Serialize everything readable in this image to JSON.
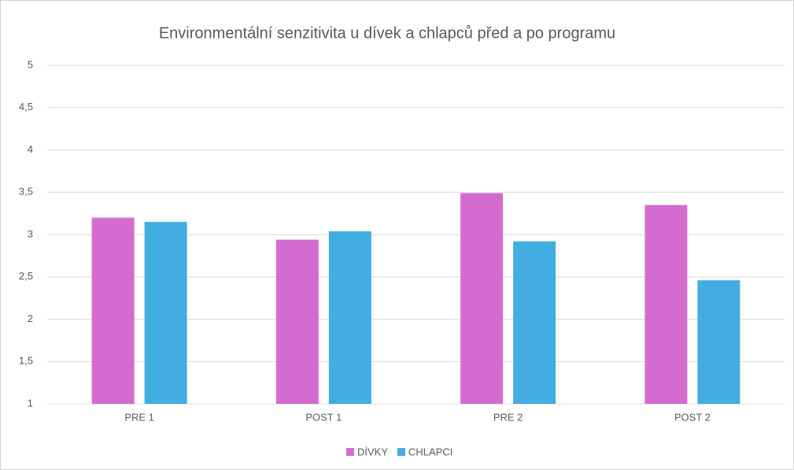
{
  "chart_data": {
    "type": "bar",
    "title": "Environmentální senzitivita u dívek a chlapců před a po programu",
    "categories": [
      "PRE 1",
      "POST 1",
      "PRE 2",
      "POST 2"
    ],
    "series": [
      {
        "name": "DÍVKY",
        "color": "#d46ccf",
        "values": [
          3.2,
          2.94,
          3.49,
          3.35
        ]
      },
      {
        "name": "CHLAPCI",
        "color": "#42ade0",
        "values": [
          3.15,
          3.04,
          2.92,
          2.46
        ]
      }
    ],
    "ylim": [
      1,
      5
    ],
    "yticks": [
      1,
      {
        "value": 1.5,
        "label": "1,5"
      },
      2,
      {
        "value": 2.5,
        "label": "2,5"
      },
      3,
      {
        "value": 3.5,
        "label": "3,5"
      },
      4,
      {
        "value": 4.5,
        "label": "4,5"
      },
      5
    ],
    "grid": true,
    "legend": "bottom"
  }
}
